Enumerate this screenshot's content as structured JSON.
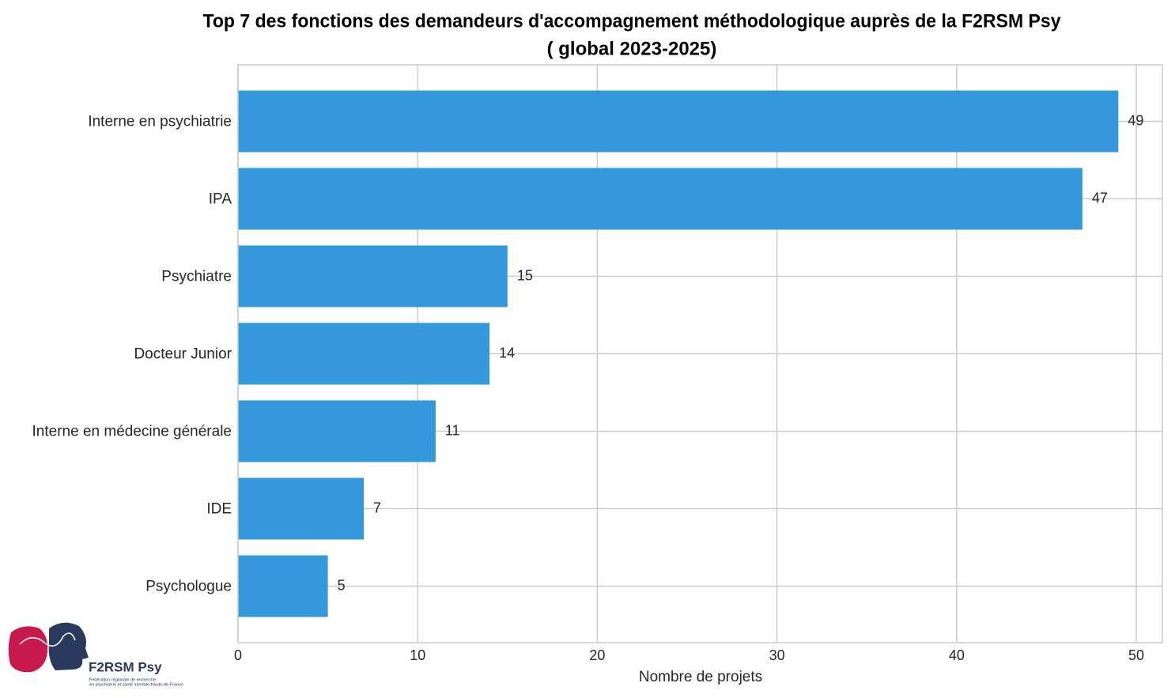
{
  "chart_data": {
    "type": "barh",
    "title": "Top 7 des fonctions des demandeurs d'accompagnement méthodologique auprès de la F2RSM Psy",
    "subtitle": "( global 2023-2025)",
    "x_label": "Nombre de projets",
    "categories": [
      "Interne en psychiatrie",
      "IPA",
      "Psychiatre",
      "Docteur Junior",
      "Interne en médecine générale",
      "IDE",
      "Psychologue"
    ],
    "values": [
      49,
      47,
      15,
      14,
      11,
      7,
      5
    ],
    "color": "#3498db",
    "xlim": [
      0,
      51.45
    ],
    "xticks": [
      0,
      10,
      20,
      30,
      40,
      50
    ],
    "grid": true
  },
  "logo": {
    "name": "F2RSM Psy",
    "tagline": [
      "Fédération régionale de recherche",
      "en psychiatrie et santé mentale Hauts-de-France"
    ]
  }
}
